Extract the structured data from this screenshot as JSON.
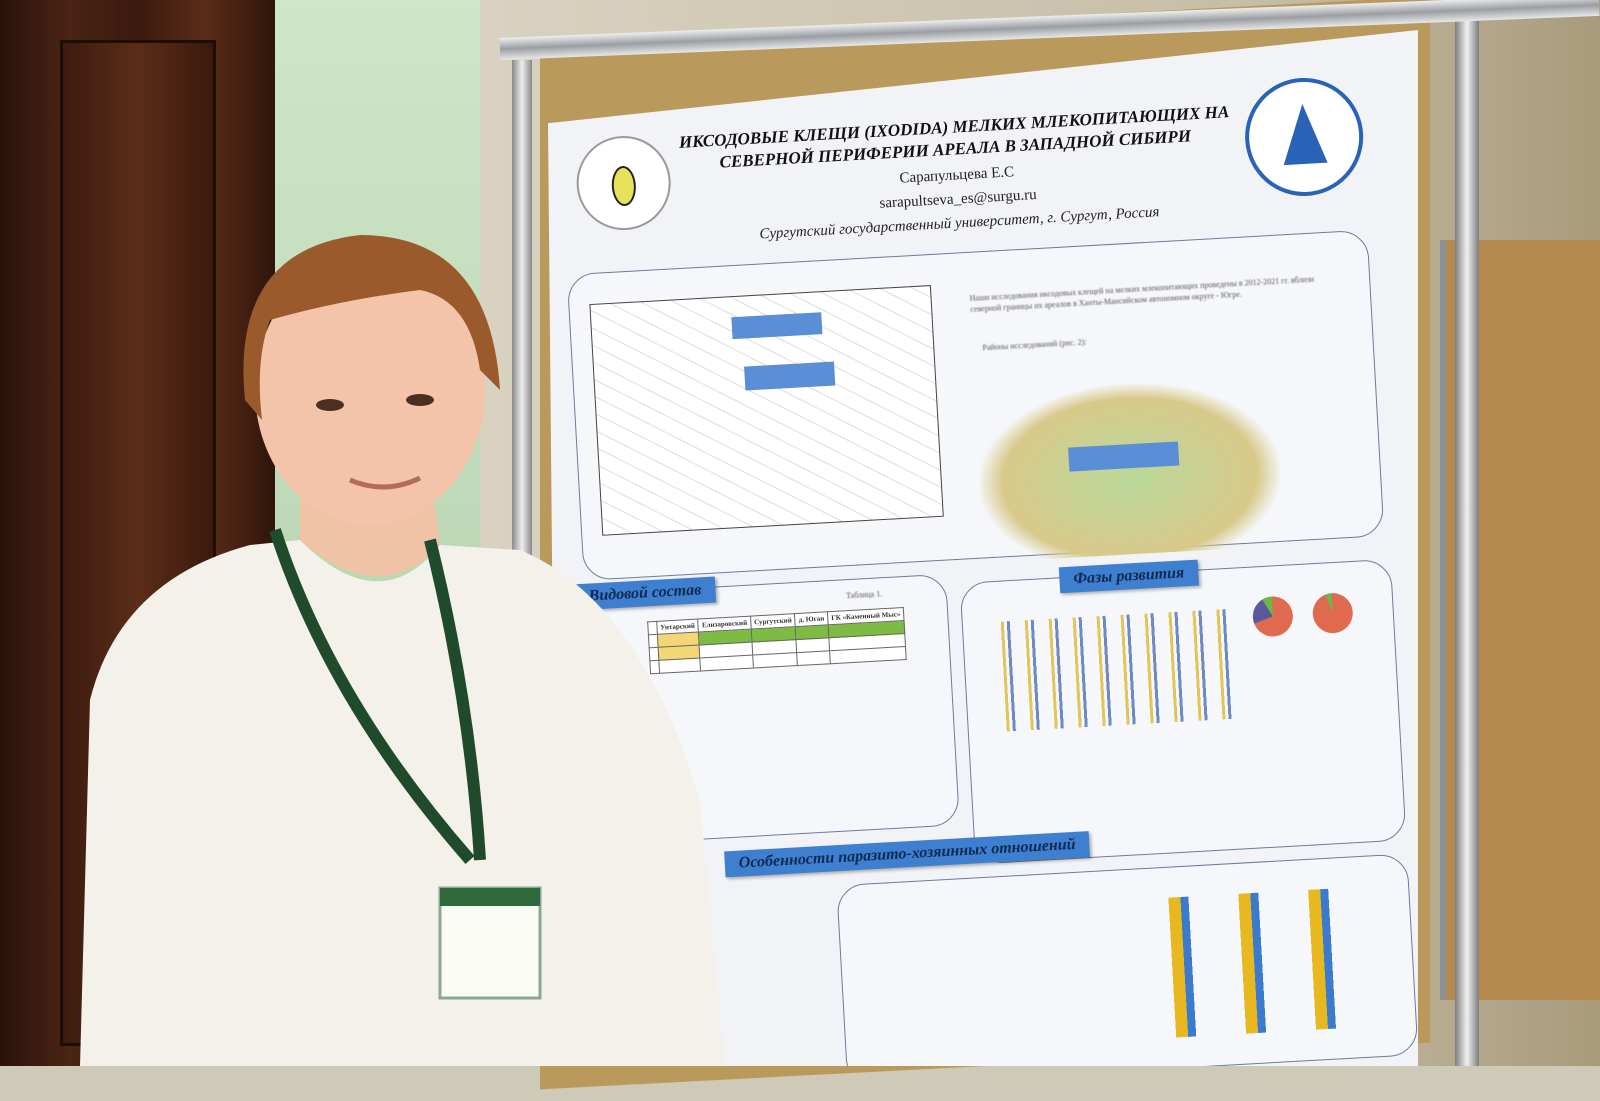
{
  "poster": {
    "title_line1": "ИКСОДОВЫЕ КЛЕЩИ (IXODIDA) МЕЛКИХ МЛЕКОПИТАЮЩИХ НА",
    "title_line2": "СЕВЕРНОЙ ПЕРИФЕРИИ АРЕАЛА В ЗАПАДНОЙ СИБИРИ",
    "author": "Сарапульцева Е.С",
    "email": "sarapultseva_es@surgu.ru",
    "affiliation": "Сургутский государственный университет, г. Сургут, Россия",
    "intro_text": "Наши исследования иксодовых клещей на мелких млекопитающих проведены в 2012-2021 гг. вблизи северной границы их ареалов в Ханты-Мансийском автономном округе - Югре.",
    "districts_heading": "Районы исследований (рис. 2):",
    "sections": {
      "species": "Видовой состав",
      "phases": "Фазы развития",
      "host_parasite": "Особенности паразито-хозяинных отношений"
    },
    "table": {
      "label": "Таблица 1.",
      "columns": [
        "Унтарский",
        "Елизаровский",
        "Сургутский",
        "д. Юган",
        "ГК «Каменный Мыс»"
      ]
    }
  },
  "colors": {
    "ribbon": "#3f7fd0",
    "sweater": "#f4f1ea",
    "lanyard": "#1f4a2c",
    "door": "#4a2414",
    "wall": "#c4ddbd"
  }
}
